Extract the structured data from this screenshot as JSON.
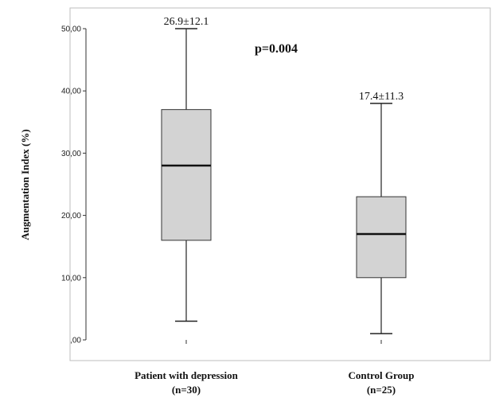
{
  "chart_data": {
    "type": "box",
    "ylabel": "Augmentation Index (%)",
    "ylim": [
      0,
      50
    ],
    "yticks": [
      {
        "value": 0,
        "label": ",00"
      },
      {
        "value": 10,
        "label": "10,00"
      },
      {
        "value": 20,
        "label": "20,00"
      },
      {
        "value": 30,
        "label": "30,00"
      },
      {
        "value": 40,
        "label": "40,00"
      },
      {
        "value": 50,
        "label": "50,00"
      }
    ],
    "categories": [
      {
        "name": "Patient with depression",
        "n": "(n=30)",
        "annotation": "26.9±12.1",
        "whisker_low": 3,
        "q1": 16,
        "median": 28,
        "q3": 37,
        "whisker_high": 50
      },
      {
        "name": "Control Group",
        "n": "(n=25)",
        "annotation": "17.4±11.3",
        "whisker_low": 1,
        "q1": 10,
        "median": 17,
        "q3": 23,
        "whisker_high": 38
      }
    ],
    "p_value_text": "p=0.004",
    "box_fill": "#d3d3d3",
    "grid": false
  }
}
